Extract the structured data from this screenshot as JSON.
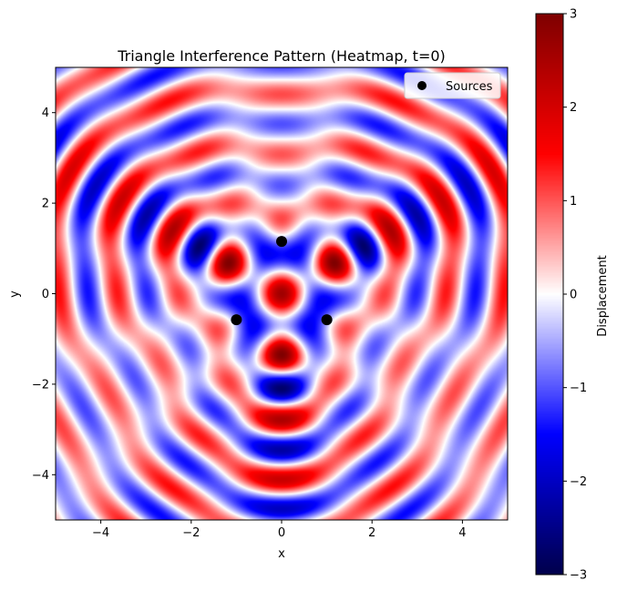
{
  "chart_data": {
    "type": "heatmap",
    "title": "Triangle Interference Pattern (Heatmap, t=0)",
    "xlabel": "x",
    "ylabel": "y",
    "xlim": [
      -5,
      5
    ],
    "ylim": [
      -5,
      5
    ],
    "xticks": [
      -4,
      -2,
      0,
      2,
      4
    ],
    "yticks": [
      -4,
      -2,
      0,
      2,
      4
    ],
    "xtick_labels": [
      "−4",
      "−2",
      "0",
      "2",
      "4"
    ],
    "ytick_labels": [
      "−4",
      "−2",
      "0",
      "2",
      "4"
    ],
    "colormap": "seismic",
    "colormap_stops": [
      "#00004c",
      "#0000ff",
      "#ffffff",
      "#ff0000",
      "#7f0000"
    ],
    "colorbar": {
      "label": "Displacement",
      "range": [
        -3,
        3
      ],
      "ticks": [
        -3,
        -2,
        -1,
        0,
        1,
        2,
        3
      ],
      "tick_labels": [
        "−3",
        "−2",
        "−1",
        "0",
        "1",
        "2",
        "3"
      ]
    },
    "sources": [
      {
        "x": 0,
        "y": 1.155
      },
      {
        "x": -1.0,
        "y": -0.577
      },
      {
        "x": 1.0,
        "y": -0.577
      }
    ],
    "source_color": "#000000",
    "wavenumber": 5.0,
    "legend": {
      "entries": [
        "Sources"
      ],
      "position": "upper right"
    },
    "grid": false
  }
}
